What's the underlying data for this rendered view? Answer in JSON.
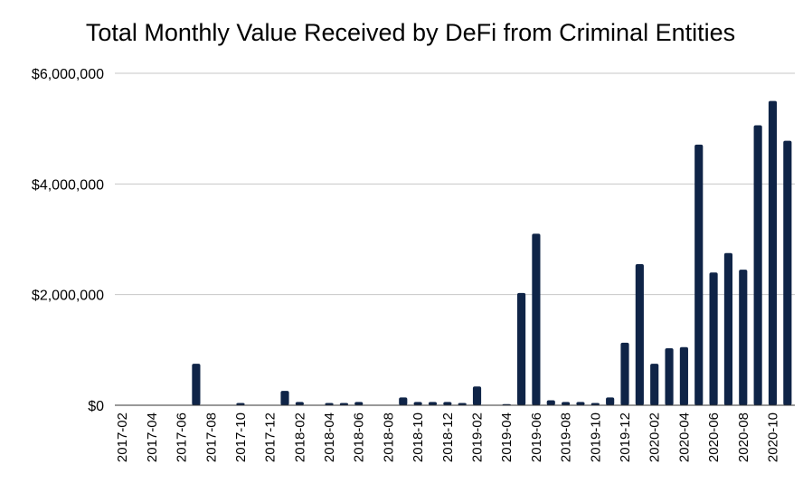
{
  "chart_data": {
    "type": "bar",
    "title": "Total Monthly Value Received by DeFi from Criminal Entities",
    "xlabel": "",
    "ylabel": "",
    "ylim": [
      0,
      6000000
    ],
    "yticks": [
      0,
      2000000,
      4000000,
      6000000
    ],
    "ytick_labels": [
      "$0",
      "$2,000,000",
      "$4,000,000",
      "$6,000,000"
    ],
    "grid": true,
    "bar_color": "#0f2447",
    "categories": [
      "2017-02",
      "2017-03",
      "2017-04",
      "2017-05",
      "2017-06",
      "2017-07",
      "2017-08",
      "2017-09",
      "2017-10",
      "2017-11",
      "2017-12",
      "2018-01",
      "2018-02",
      "2018-03",
      "2018-04",
      "2018-05",
      "2018-06",
      "2018-07",
      "2018-08",
      "2018-09",
      "2018-10",
      "2018-11",
      "2018-12",
      "2019-01",
      "2019-02",
      "2019-03",
      "2019-04",
      "2019-05",
      "2019-06",
      "2019-07",
      "2019-08",
      "2019-09",
      "2019-10",
      "2019-11",
      "2019-12",
      "2020-01",
      "2020-02",
      "2020-03",
      "2020-04",
      "2020-05",
      "2020-06",
      "2020-07",
      "2020-08",
      "2020-09",
      "2020-10",
      "2020-11"
    ],
    "visible_tick_labels": [
      "2017-02",
      "2017-04",
      "2017-06",
      "2017-08",
      "2017-10",
      "2017-12",
      "2018-02",
      "2018-04",
      "2018-06",
      "2018-08",
      "2018-10",
      "2018-12",
      "2019-02",
      "2019-04",
      "2019-06",
      "2019-08",
      "2019-10",
      "2019-12",
      "2020-02",
      "2020-04",
      "2020-06",
      "2020-08",
      "2020-10"
    ],
    "values": [
      0,
      0,
      0,
      0,
      0,
      750000,
      0,
      0,
      40000,
      0,
      0,
      260000,
      60000,
      0,
      40000,
      40000,
      60000,
      0,
      0,
      140000,
      60000,
      60000,
      60000,
      40000,
      340000,
      0,
      20000,
      2030000,
      3100000,
      90000,
      60000,
      60000,
      40000,
      140000,
      1130000,
      2550000,
      750000,
      1030000,
      1050000,
      4710000,
      2400000,
      2750000,
      2450000,
      5060000,
      5500000,
      4780000
    ]
  }
}
